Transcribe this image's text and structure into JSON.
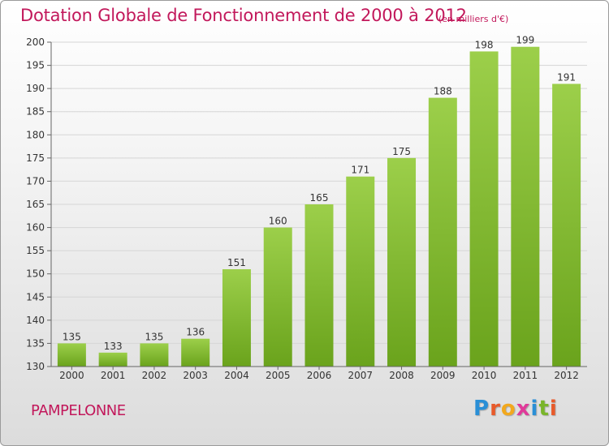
{
  "header": {
    "title": "Dotation Globale de Fonctionnement de 2000 à 2012",
    "unit": "(en milliers d'€)"
  },
  "footer": {
    "commune": "PAMPELONNE",
    "logo": [
      "P",
      "r",
      "o",
      "x",
      "i",
      "t",
      "i"
    ]
  },
  "colors": {
    "title": "#c2185b",
    "bar_light": "#9ccf4a",
    "bar_dark": "#6aa31c",
    "logo": [
      "#2a8fd6",
      "#e85a2a",
      "#f2a81d",
      "#e03a9a",
      "#2a8fd6",
      "#79b52a",
      "#e85a2a"
    ]
  },
  "chart_data": {
    "type": "bar",
    "categories": [
      "2000",
      "2001",
      "2002",
      "2003",
      "2004",
      "2005",
      "2006",
      "2007",
      "2008",
      "2009",
      "2010",
      "2011",
      "2012"
    ],
    "values": [
      135,
      133,
      135,
      136,
      151,
      160,
      165,
      171,
      175,
      188,
      198,
      199,
      191
    ],
    "ylim": [
      130,
      200
    ],
    "yticks": [
      130,
      135,
      140,
      145,
      150,
      155,
      160,
      165,
      170,
      175,
      180,
      185,
      190,
      195,
      200
    ],
    "grid": true
  }
}
